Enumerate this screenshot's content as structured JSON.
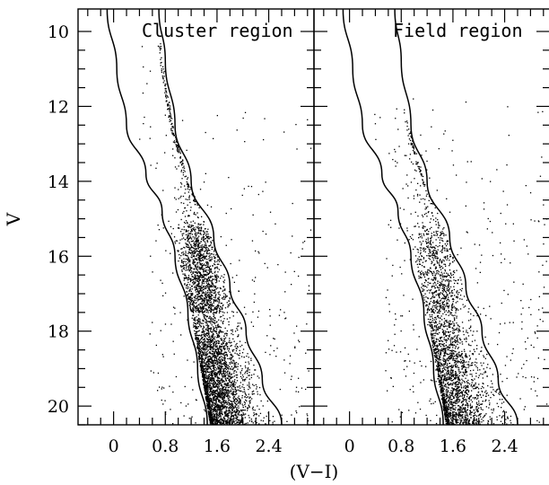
{
  "chart_data": [
    {
      "type": "scatter",
      "title": "Cluster region",
      "xlabel": "(V−I)",
      "ylabel": "V",
      "xlim": [
        -0.55,
        3.1
      ],
      "ylim": [
        20.5,
        9.4
      ],
      "y_inverted": true,
      "x_ticks": [
        0,
        0.8,
        1.6,
        2.4
      ],
      "x_tick_labels": [
        "0",
        "0.8",
        "1.6",
        "2.4"
      ],
      "y_ticks": [
        10,
        12,
        14,
        16,
        18,
        20
      ],
      "y_tick_labels": [
        "10",
        "12",
        "14",
        "16",
        "18",
        "20"
      ],
      "grid": false,
      "series": [
        {
          "kind": "boundary-curves",
          "blue_edge": [
            [
              -0.1,
              9.4
            ],
            [
              0.05,
              11.0
            ],
            [
              0.2,
              12.5
            ],
            [
              0.5,
              13.8
            ],
            [
              0.75,
              14.8
            ],
            [
              0.95,
              16.0
            ],
            [
              1.15,
              17.5
            ],
            [
              1.3,
              19.0
            ],
            [
              1.45,
              20.5
            ]
          ],
          "red_edge": [
            [
              0.7,
              9.4
            ],
            [
              0.8,
              10.8
            ],
            [
              0.95,
              12.5
            ],
            [
              1.2,
              14.0
            ],
            [
              1.55,
              15.5
            ],
            [
              1.8,
              16.8
            ],
            [
              2.05,
              18.0
            ],
            [
              2.3,
              19.3
            ],
            [
              2.6,
              20.5
            ]
          ]
        },
        {
          "kind": "stars",
          "main_sequence": [
            [
              1.15,
              14.2
            ],
            [
              1.35,
              16.5
            ],
            [
              1.5,
              18.5
            ],
            [
              1.65,
              20.3
            ]
          ],
          "main_sequence_width": [
            0.12,
            0.17,
            0.2,
            0.24
          ],
          "main_sequence_start_V": 10.3,
          "main_sequence_counts": [
            260,
            1300,
            2700
          ],
          "main_sequence_breaks_V": [
            15.0,
            17.5
          ],
          "main_sequence_fraction": 0.93,
          "field_stars": 280,
          "field_x_range": [
            0.55,
            3.05
          ],
          "field_y_range": [
            12.0,
            20.5
          ],
          "seed": 73
        }
      ]
    },
    {
      "type": "scatter",
      "title": "Field region",
      "xlabel": "(V−I)",
      "ylabel": "V",
      "xlim": [
        -0.55,
        3.1
      ],
      "ylim": [
        20.5,
        9.4
      ],
      "y_inverted": true,
      "x_ticks": [
        0,
        0.8,
        1.6,
        2.4
      ],
      "x_tick_labels": [
        "0",
        "0.8",
        "1.6",
        "2.4"
      ],
      "y_ticks": [
        10,
        12,
        14,
        16,
        18,
        20
      ],
      "y_tick_labels": [
        "",
        "",
        "",
        "",
        "",
        ""
      ],
      "grid": false,
      "series": [
        {
          "kind": "boundary-curves",
          "blue_edge": [
            [
              -0.1,
              9.4
            ],
            [
              0.05,
              11.0
            ],
            [
              0.2,
              12.5
            ],
            [
              0.5,
              13.8
            ],
            [
              0.75,
              14.8
            ],
            [
              0.95,
              16.0
            ],
            [
              1.15,
              17.5
            ],
            [
              1.3,
              19.0
            ],
            [
              1.45,
              20.5
            ]
          ],
          "red_edge": [
            [
              0.7,
              9.4
            ],
            [
              0.8,
              10.8
            ],
            [
              0.95,
              12.5
            ],
            [
              1.2,
              14.0
            ],
            [
              1.55,
              15.5
            ],
            [
              1.8,
              16.8
            ],
            [
              2.05,
              18.0
            ],
            [
              2.3,
              19.3
            ],
            [
              2.6,
              20.5
            ]
          ]
        },
        {
          "kind": "stars",
          "main_sequence": [
            [
              1.15,
              14.2
            ],
            [
              1.35,
              16.5
            ],
            [
              1.5,
              18.5
            ],
            [
              1.65,
              20.3
            ]
          ],
          "main_sequence_width": [
            0.12,
            0.17,
            0.2,
            0.24
          ],
          "main_sequence_start_V": 12.0,
          "main_sequence_counts": [
            130,
            700,
            1800
          ],
          "main_sequence_breaks_V": [
            15.0,
            17.5
          ],
          "main_sequence_fraction": 0.88,
          "field_stars": 340,
          "field_x_range": [
            0.55,
            3.05
          ],
          "field_y_range": [
            11.5,
            20.5
          ],
          "seed": 211
        }
      ]
    }
  ]
}
